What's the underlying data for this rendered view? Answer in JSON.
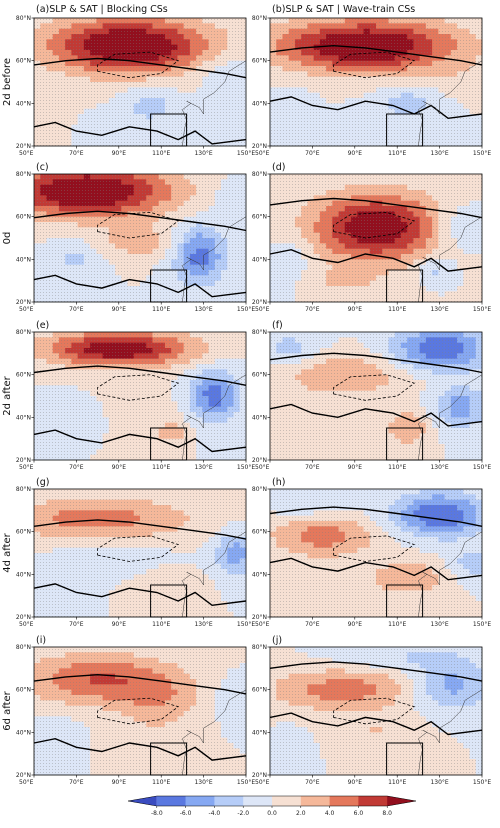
{
  "chart_data": {
    "type": "heatmap",
    "columns": [
      {
        "title": "(a)SLP & SAT | Blocking CSs"
      },
      {
        "title": "(b)SLP & SAT | Wave-train CSs"
      }
    ],
    "rows": [
      {
        "label": "2d before"
      },
      {
        "label": "0d"
      },
      {
        "label": "2d after"
      },
      {
        "label": "4d after"
      },
      {
        "label": "6d after"
      }
    ],
    "panels": [
      {
        "letter": "",
        "row": 0,
        "col": 0
      },
      {
        "letter": "",
        "row": 0,
        "col": 1
      },
      {
        "letter": "(c)",
        "row": 1,
        "col": 0
      },
      {
        "letter": "(d)",
        "row": 1,
        "col": 1
      },
      {
        "letter": "(e)",
        "row": 2,
        "col": 0
      },
      {
        "letter": "(f)",
        "row": 2,
        "col": 1
      },
      {
        "letter": "(g)",
        "row": 3,
        "col": 0
      },
      {
        "letter": "(h)",
        "row": 3,
        "col": 1
      },
      {
        "letter": "(i)",
        "row": 4,
        "col": 0
      },
      {
        "letter": "(j)",
        "row": 4,
        "col": 1
      }
    ],
    "xlim": [
      50,
      150
    ],
    "ylim": [
      20,
      80
    ],
    "x_ticks": [
      50,
      70,
      90,
      110,
      130,
      150
    ],
    "x_tick_labels": [
      "50°E",
      "70°E",
      "90°E",
      "110°E",
      "130°E",
      "150°E"
    ],
    "y_ticks": [
      20,
      40,
      60,
      80
    ],
    "y_tick_labels": [
      "20°N",
      "40°N",
      "60°N",
      "80°N"
    ],
    "region_box": {
      "lon": [
        105,
        122
      ],
      "lat": [
        20,
        35
      ]
    },
    "colorbar": {
      "ticks": [
        -8.0,
        -6.0,
        -4.0,
        -2.0,
        0.0,
        2.0,
        4.0,
        6.0,
        8.0
      ],
      "tick_labels": [
        "-8.0",
        "-6.0",
        "-4.0",
        "-2.0",
        "0.0",
        "2.0",
        "4.0",
        "6.0",
        "8.0"
      ],
      "colors": [
        "#3a4cc0",
        "#5a78e0",
        "#86a8f2",
        "#b6cdf8",
        "#dde6f7",
        "#f6e0d3",
        "#f5b89a",
        "#e4785c",
        "#c13a35",
        "#920f1e"
      ]
    },
    "grid": false,
    "legend": "none",
    "colors": {
      "positive_max": "#920f1e",
      "negative_max": "#3a4cc0",
      "neutral": "#ece9e7",
      "stipple": "#8a8a8a",
      "contour": "#000000"
    }
  }
}
